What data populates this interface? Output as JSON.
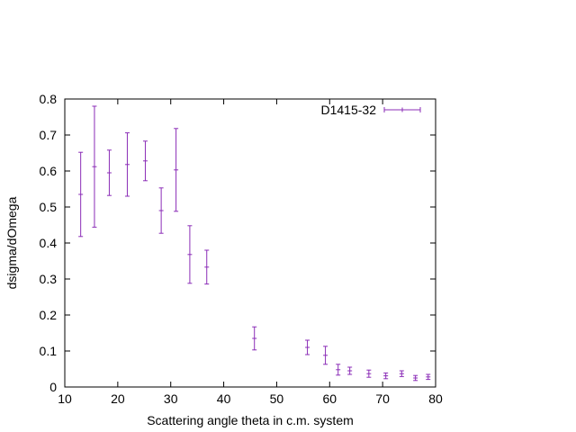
{
  "chart_data": {
    "type": "scatter",
    "title": "",
    "xlabel": "Scattering angle theta in c.m. system",
    "ylabel": "dsigma/dOmega",
    "xlim": [
      10,
      80
    ],
    "ylim": [
      0,
      0.8
    ],
    "xticks": [
      10,
      20,
      30,
      40,
      50,
      60,
      70,
      80
    ],
    "yticks": [
      0,
      0.1,
      0.2,
      0.3,
      0.4,
      0.5,
      0.6,
      0.7,
      0.8
    ],
    "xtick_labels": [
      "10",
      "20",
      "30",
      "40",
      "50",
      "60",
      "70",
      "80"
    ],
    "ytick_labels": [
      "0",
      "0.1",
      "0.2",
      "0.3",
      "0.4",
      "0.5",
      "0.6",
      "0.7",
      "0.8"
    ],
    "grid": false,
    "legend": "top-right",
    "series": [
      {
        "name": "D1415-32",
        "color": "#8B2DB7",
        "style": "errorbars",
        "x": [
          13.0,
          15.6,
          18.4,
          21.8,
          25.2,
          28.2,
          31.0,
          33.6,
          36.8,
          45.8,
          55.8,
          59.2,
          61.6,
          63.8,
          67.4,
          70.6,
          73.6,
          76.2,
          78.6
        ],
        "y": [
          0.535,
          0.612,
          0.595,
          0.618,
          0.628,
          0.49,
          0.603,
          0.368,
          0.333,
          0.135,
          0.11,
          0.088,
          0.048,
          0.045,
          0.037,
          0.031,
          0.037,
          0.025,
          0.028
        ],
        "yerr": [
          0.117,
          0.168,
          0.063,
          0.088,
          0.055,
          0.063,
          0.115,
          0.08,
          0.047,
          0.032,
          0.02,
          0.025,
          0.015,
          0.01,
          0.01,
          0.008,
          0.008,
          0.007,
          0.007
        ]
      }
    ]
  }
}
